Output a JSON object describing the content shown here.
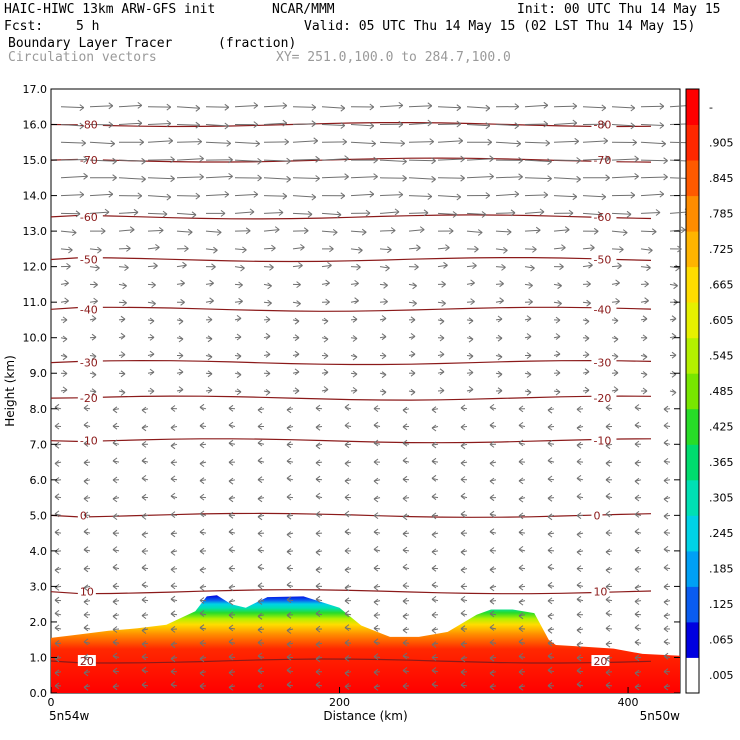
{
  "header": {
    "model": "HAIC-HIWC 13km ARW-GFS init",
    "org": "NCAR/MMM",
    "init": "Init: 00 UTC Thu 14 May 15",
    "fcst_label": "Fcst:",
    "fcst_value": "5 h",
    "valid": "Valid: 05 UTC Thu 14 May 15 (02 LST Thu 14 May 15)",
    "field": "Boundary Layer Tracer",
    "field_units": "(fraction)",
    "vectors": "Circulation vectors",
    "xy": "XY= 251.0,100.0 to 284.7,100.0"
  },
  "chart_data": {
    "type": "heatmap",
    "ylabel": "Height (km)",
    "xlabel": "Distance (km)",
    "xlim": [
      0,
      436
    ],
    "ylim": [
      0,
      17
    ],
    "x_ticks": [
      "0",
      "200",
      "400"
    ],
    "x_tick_values": [
      0,
      200,
      400
    ],
    "y_ticks": [
      "0.0",
      "1.0",
      "2.0",
      "3.0",
      "4.0",
      "5.0",
      "6.0",
      "7.0",
      "8.0",
      "9.0",
      "10.0",
      "11.0",
      "12.0",
      "13.0",
      "14.0",
      "15.0",
      "16.0",
      "17.0"
    ],
    "y_tick_values": [
      0,
      1,
      2,
      3,
      4,
      5,
      6,
      7,
      8,
      9,
      10,
      11,
      12,
      13,
      14,
      15,
      16,
      17
    ],
    "endpoints": {
      "left": "5n54w",
      "right": "5n50w"
    },
    "colorbar": {
      "labels": [
        ".005",
        ".065",
        ".125",
        ".185",
        ".245",
        ".305",
        ".365",
        ".425",
        ".485",
        ".545",
        ".605",
        ".665",
        ".725",
        ".785",
        ".845",
        ".905",
        "-"
      ],
      "colors": [
        "#ffffff",
        "#0000e0",
        "#0a5cf0",
        "#00a0f5",
        "#00d2e6",
        "#00e0b4",
        "#00dc6e",
        "#28dc28",
        "#78e600",
        "#b4f000",
        "#e6f000",
        "#ffdc00",
        "#ffb400",
        "#ff8c00",
        "#ff5a00",
        "#ff2800",
        "#ff0000"
      ]
    },
    "bl_top_km": {
      "x_km": [
        0,
        20,
        40,
        60,
        80,
        100,
        108,
        115,
        125,
        135,
        150,
        175,
        200,
        215,
        235,
        255,
        275,
        295,
        305,
        320,
        335,
        345,
        350,
        370,
        390,
        410,
        436
      ],
      "y": [
        1.55,
        1.65,
        1.75,
        1.82,
        1.92,
        2.3,
        2.72,
        2.75,
        2.5,
        2.4,
        2.7,
        2.72,
        2.4,
        1.9,
        1.58,
        1.58,
        1.72,
        2.2,
        2.35,
        2.35,
        2.25,
        1.5,
        1.35,
        1.3,
        1.25,
        1.1,
        1.05
      ]
    },
    "temperature_contours": {
      "labels": [
        "20",
        "10",
        "0",
        "-10",
        "-20",
        "-30",
        "-40",
        "-50",
        "-60",
        "-70",
        "-80"
      ],
      "values": [
        20,
        10,
        0,
        -10,
        -20,
        -30,
        -40,
        -50,
        -60,
        -70,
        -80
      ],
      "height_km": [
        0.9,
        2.85,
        5.0,
        7.1,
        8.3,
        9.3,
        10.8,
        12.2,
        13.4,
        15.0,
        16.0
      ]
    },
    "vector_rows_km": [
      0.2,
      0.6,
      1.0,
      1.4,
      1.8,
      2.2,
      2.6,
      3.0,
      3.5,
      4.0,
      4.5,
      5.0,
      5.5,
      6.0,
      6.5,
      7.0,
      7.5,
      8.0,
      8.5,
      9.0,
      9.5,
      10.0,
      10.5,
      11.0,
      11.5,
      12.0,
      12.5,
      13.0,
      13.5,
      14.0,
      14.5,
      15.0,
      15.5,
      16.0,
      16.5
    ],
    "vector_wind_u": [
      -2,
      -2,
      -3,
      -3,
      -3,
      -3,
      -3,
      -3,
      -3,
      -3,
      -3,
      -2,
      -2,
      -2,
      -2,
      -2,
      -1,
      -1,
      0,
      1,
      2,
      3,
      3,
      4,
      4,
      5,
      6,
      8,
      10,
      12,
      14,
      14,
      13,
      12,
      12
    ]
  }
}
